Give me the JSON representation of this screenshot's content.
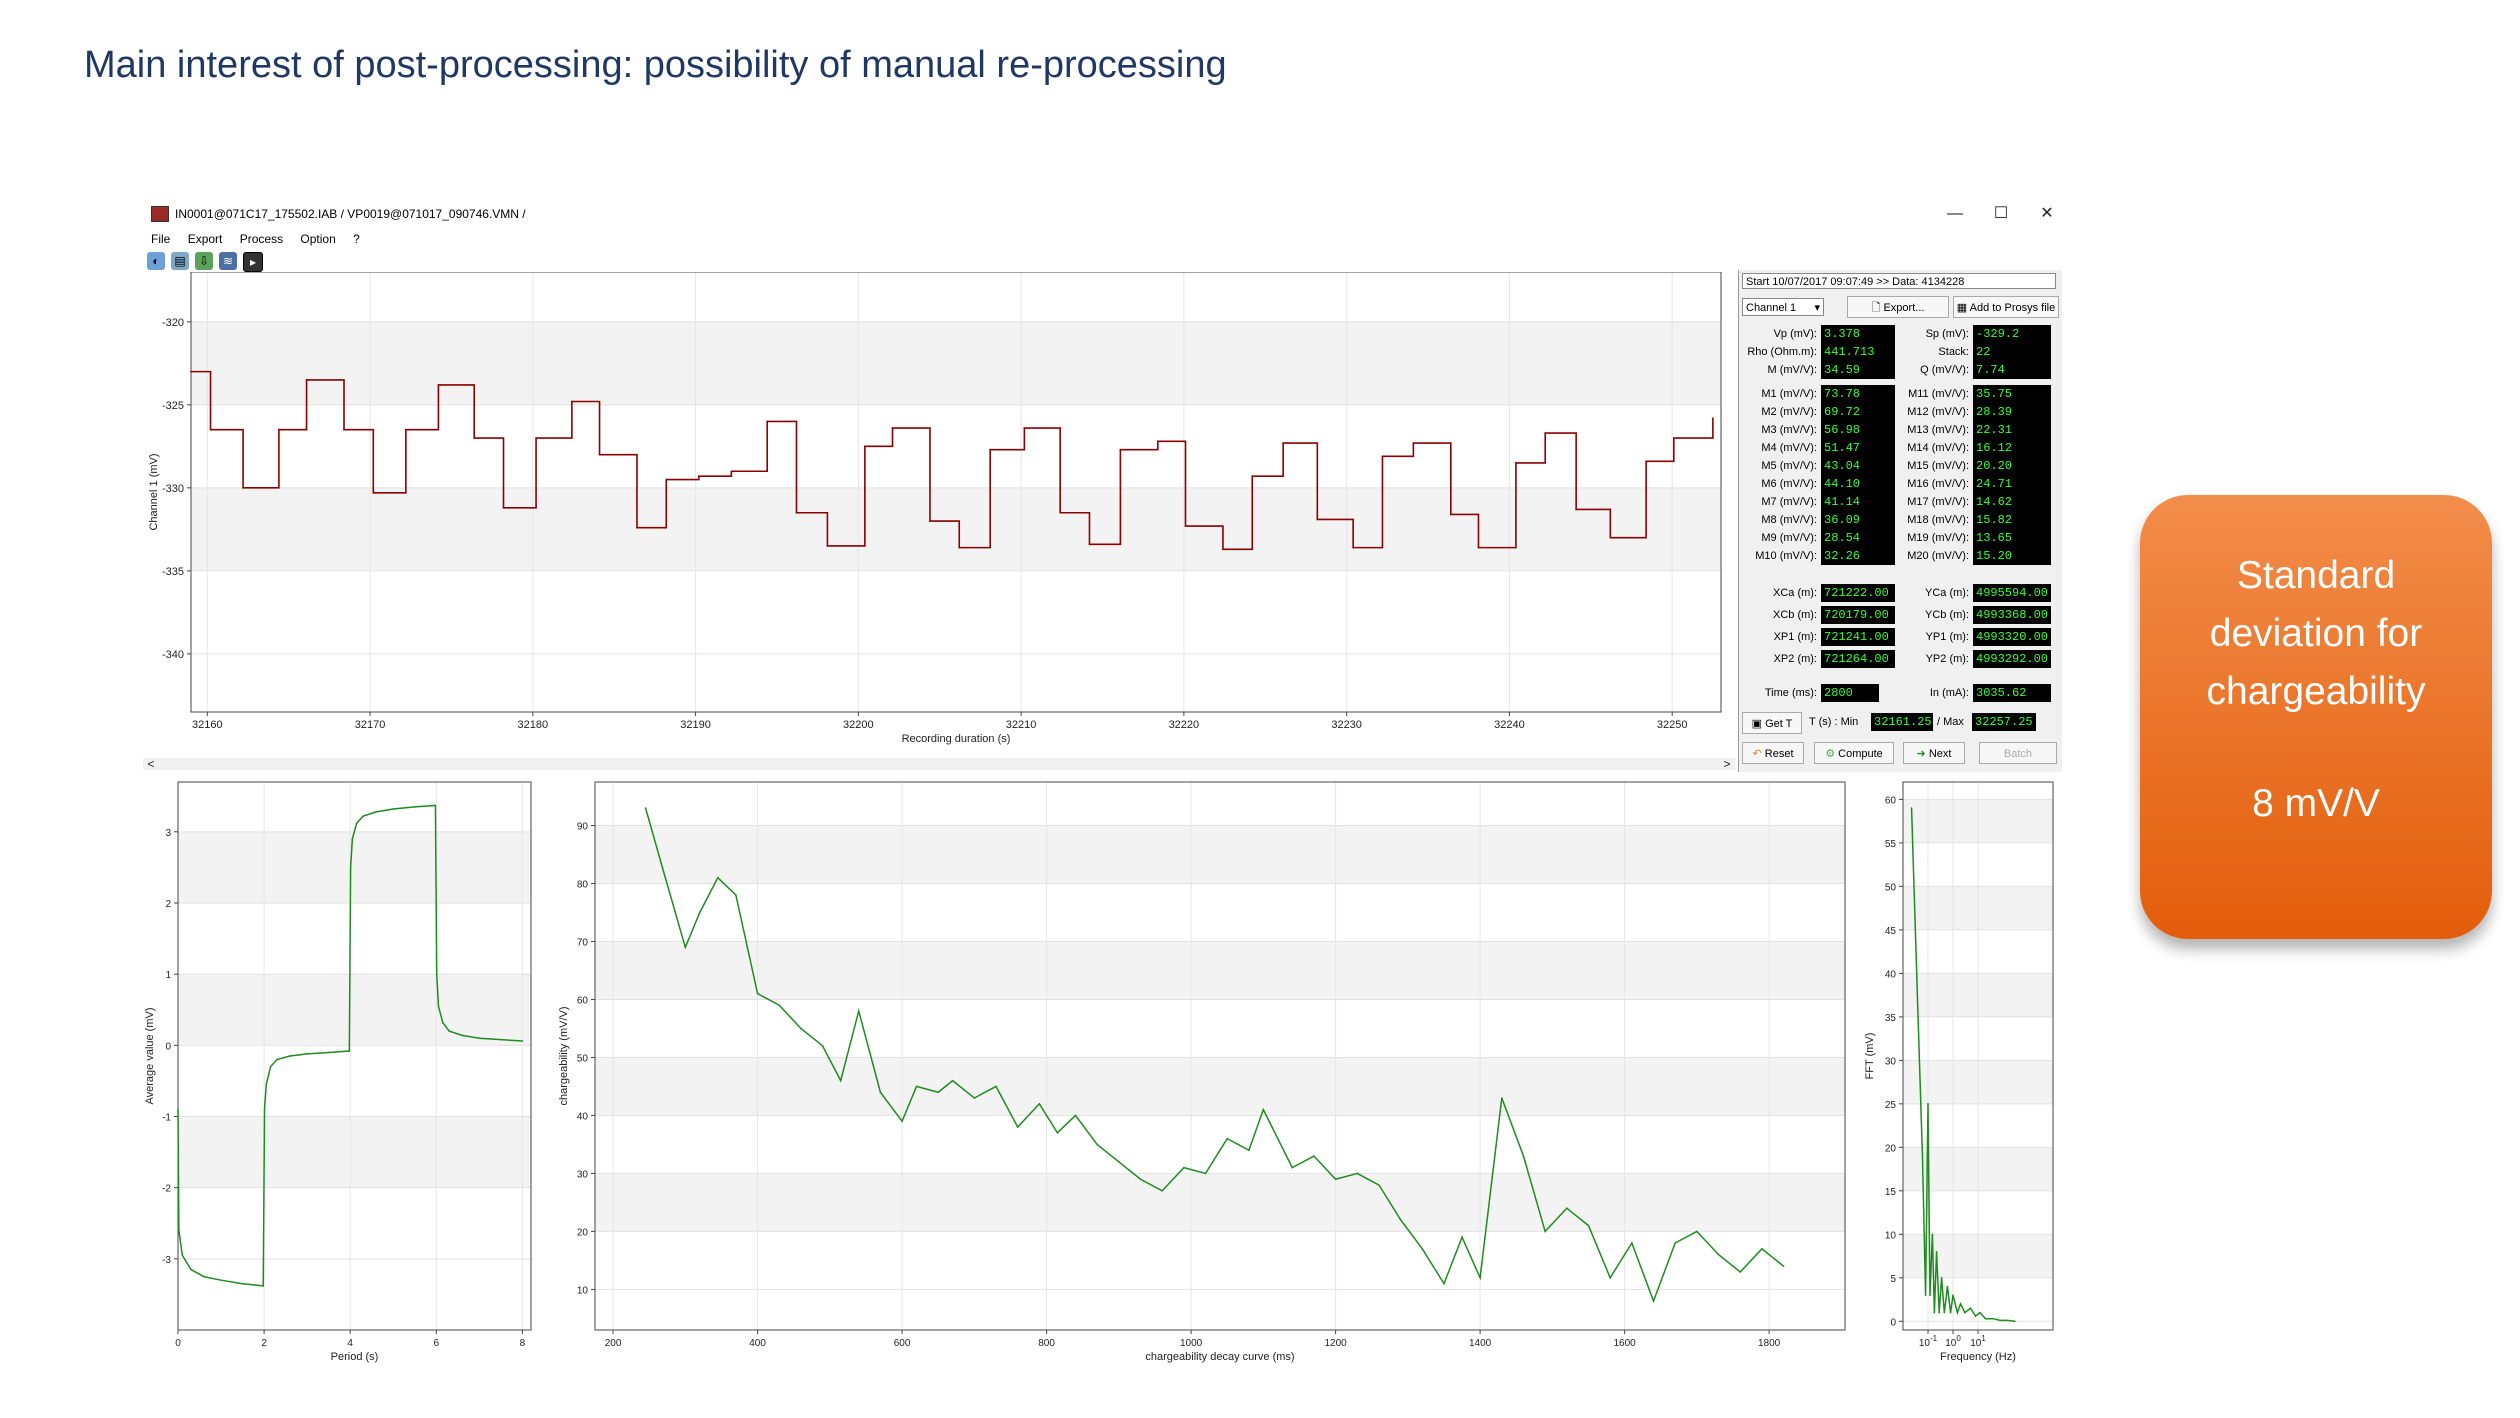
{
  "slide": {
    "title": "Main interest of post-processing: possibility of manual re-processing"
  },
  "window": {
    "title": "IN0001@071C17_175502.IAB / VP0019@071017_090746.VMN /",
    "controls": {
      "minimize": "—",
      "maximize": "☐",
      "close": "✕"
    },
    "menu": [
      "File",
      "Export",
      "Process",
      "Option",
      "?"
    ]
  },
  "top_chart": {
    "ylabel": "Channel 1  (mV)",
    "xlabel": "Recording duration  (s)",
    "yticks": [
      "-320",
      "-325",
      "-330",
      "-335",
      "-340"
    ],
    "xticks": [
      "32160",
      "32170",
      "32180",
      "32190",
      "32200",
      "32210",
      "32220",
      "32230",
      "32240",
      "32250"
    ]
  },
  "side_panel": {
    "start": "Start 10/07/2017 09:07:49  >> Data: 4134228",
    "channel": "Channel 1",
    "export_btn": "Export...",
    "prosys_btn": "Add to Prosys file",
    "params_left": [
      [
        "Vp (mV):",
        "3.378"
      ],
      [
        "Rho (Ohm.m):",
        "441.713"
      ],
      [
        "M (mV/V):",
        "34.59"
      ]
    ],
    "params_right": [
      [
        "Sp (mV):",
        "-329.2"
      ],
      [
        "Stack:",
        "22"
      ],
      [
        "Q (mV/V):",
        "7.74"
      ]
    ],
    "m_left": [
      [
        "M1 (mV/V):",
        "73.78"
      ],
      [
        "M2 (mV/V):",
        "69.72"
      ],
      [
        "M3 (mV/V):",
        "56.98"
      ],
      [
        "M4 (mV/V):",
        "51.47"
      ],
      [
        "M5 (mV/V):",
        "43.04"
      ],
      [
        "M6 (mV/V):",
        "44.10"
      ],
      [
        "M7 (mV/V):",
        "41.14"
      ],
      [
        "M8 (mV/V):",
        "36.09"
      ],
      [
        "M9 (mV/V):",
        "28.54"
      ],
      [
        "M10 (mV/V):",
        "32.26"
      ]
    ],
    "m_right": [
      [
        "M11 (mV/V):",
        "35.75"
      ],
      [
        "M12 (mV/V):",
        "28.39"
      ],
      [
        "M13 (mV/V):",
        "22.31"
      ],
      [
        "M14 (mV/V):",
        "16.12"
      ],
      [
        "M15 (mV/V):",
        "20.20"
      ],
      [
        "M16 (mV/V):",
        "24.71"
      ],
      [
        "M17 (mV/V):",
        "14.62"
      ],
      [
        "M18 (mV/V):",
        "15.82"
      ],
      [
        "M19 (mV/V):",
        "13.65"
      ],
      [
        "M20 (mV/V):",
        "15.20"
      ]
    ],
    "coords_left": [
      [
        "XCa (m):",
        "721222.00"
      ],
      [
        "XCb (m):",
        "720179.00"
      ],
      [
        "XP1 (m):",
        "721241.00"
      ],
      [
        "XP2 (m):",
        "721264.00"
      ]
    ],
    "coords_right": [
      [
        "YCa (m):",
        "4995594.00"
      ],
      [
        "YCb (m):",
        "4993368.00"
      ],
      [
        "YP1 (m):",
        "4993320.00"
      ],
      [
        "YP2 (m):",
        "4993292.00"
      ]
    ],
    "time_label": "Time (ms):",
    "time_value": "2800",
    "in_label": "In (mA):",
    "in_value": "3035.62",
    "get_t": "Get T",
    "t_min_label": "T (s) : Min",
    "t_min": "32161.25",
    "t_max_label": "/ Max",
    "t_max": "32257.25",
    "reset": "Reset",
    "compute": "Compute",
    "next": "Next",
    "batch": "Batch"
  },
  "chart_data": [
    {
      "type": "line",
      "ylabel": "Channel 1  (mV)",
      "xlabel": "Recording duration  (s)",
      "xlim": [
        32159,
        32253
      ],
      "ylim": [
        -343.5,
        -317
      ],
      "color": "#8b0000",
      "x": [
        32159.0,
        32160.2,
        32162.2,
        32164.4,
        32166.1,
        32168.4,
        32170.2,
        32172.2,
        32174.2,
        32176.4,
        32178.2,
        32180.2,
        32182.4,
        32184.1,
        32186.4,
        32188.2,
        32190.2,
        32192.2,
        32194.4,
        32196.2,
        32198.1,
        32200.4,
        32202.1,
        32204.4,
        32206.2,
        32208.1,
        32210.2,
        32212.4,
        32214.2,
        32216.1,
        32218.4,
        32220.1,
        32222.4,
        32224.2,
        32226.1,
        32228.2,
        32230.4,
        32232.2,
        32234.1,
        32236.4,
        32238.1,
        32240.4,
        32242.2,
        32244.1,
        32246.2,
        32248.4,
        32250.1,
        32252.5
      ],
      "y": [
        -323.0,
        -326.5,
        -330.0,
        -326.5,
        -323.5,
        -326.5,
        -330.3,
        -326.5,
        -323.8,
        -327.0,
        -331.2,
        -327.0,
        -324.8,
        -328.0,
        -332.4,
        -329.5,
        -329.3,
        -329.0,
        -326.0,
        -331.5,
        -333.5,
        -327.5,
        -326.4,
        -332.0,
        -333.6,
        -327.7,
        -326.4,
        -331.5,
        -333.4,
        -327.7,
        -327.2,
        -332.3,
        -333.7,
        -329.3,
        -327.3,
        -331.9,
        -333.6,
        -328.1,
        -327.3,
        -331.6,
        -333.6,
        -328.5,
        -326.7,
        -331.3,
        -333.0,
        -328.4,
        -327.0,
        -325.8
      ]
    },
    {
      "type": "line",
      "ylabel": "Average value  (mV)",
      "xlabel": "Period  (s)",
      "xlim": [
        0,
        8.2
      ],
      "ylim": [
        -4,
        3.7
      ],
      "xticks": [
        "0",
        "2",
        "4",
        "6",
        "8"
      ],
      "yticks": [
        "3",
        "2",
        "1",
        "0",
        "-1",
        "-2",
        "-3"
      ],
      "color": "#1e8c1e",
      "x": [
        0.0,
        0.02,
        0.1,
        0.3,
        0.6,
        1.0,
        1.5,
        1.98,
        2.01,
        2.05,
        2.15,
        2.3,
        2.6,
        3.0,
        3.5,
        3.98,
        4.01,
        4.05,
        4.15,
        4.3,
        4.6,
        5.0,
        5.5,
        5.98,
        6.01,
        6.05,
        6.15,
        6.3,
        6.6,
        7.0,
        7.5,
        8.0
      ],
      "y": [
        -0.9,
        -2.6,
        -2.95,
        -3.15,
        -3.25,
        -3.3,
        -3.35,
        -3.38,
        -0.9,
        -0.55,
        -0.3,
        -0.2,
        -0.15,
        -0.12,
        -0.1,
        -0.08,
        2.5,
        2.9,
        3.12,
        3.22,
        3.28,
        3.32,
        3.35,
        3.37,
        1.0,
        0.55,
        0.32,
        0.2,
        0.14,
        0.1,
        0.08,
        0.06
      ]
    },
    {
      "type": "line",
      "ylabel": "chargeability  (mV/V)",
      "xlabel": "chargeability decay curve (ms)",
      "xlim": [
        175,
        1905
      ],
      "ylim": [
        3,
        97.5
      ],
      "xticks": [
        "200",
        "400",
        "600",
        "800",
        "1000",
        "1200",
        "1400",
        "1600",
        "1800"
      ],
      "yticks": [
        "90",
        "80",
        "70",
        "60",
        "50",
        "40",
        "30",
        "20",
        "10"
      ],
      "color": "#1e8c1e",
      "x": [
        245,
        270,
        300,
        320,
        345,
        370,
        400,
        430,
        460,
        490,
        515,
        540,
        570,
        600,
        620,
        650,
        670,
        700,
        730,
        760,
        790,
        815,
        840,
        870,
        900,
        930,
        960,
        990,
        1020,
        1050,
        1080,
        1100,
        1140,
        1170,
        1200,
        1230,
        1260,
        1290,
        1320,
        1350,
        1375,
        1400,
        1430,
        1460,
        1490,
        1520,
        1550,
        1580,
        1610,
        1640,
        1670,
        1700,
        1730,
        1760,
        1790,
        1820
      ],
      "y": [
        93,
        82,
        69,
        75,
        81,
        78,
        61,
        59,
        55,
        52,
        46,
        58,
        44,
        39,
        45,
        44,
        46,
        43,
        45,
        38,
        42,
        37,
        40,
        35,
        32,
        29,
        27,
        31,
        30,
        36,
        34,
        41,
        31,
        33,
        29,
        30,
        28,
        22,
        17,
        11,
        19,
        12,
        43,
        33,
        20,
        24,
        21,
        12,
        18,
        8,
        18,
        20,
        16,
        13,
        17,
        14
      ]
    },
    {
      "type": "line",
      "ylabel": "FFT  (mV)",
      "xlabel": "Frequency (Hz)",
      "xscale": "log",
      "xlim": [
        0.01,
        10000
      ],
      "ylim": [
        -1,
        62
      ],
      "xticks": [
        "10^-1",
        "10^0",
        "10^1"
      ],
      "yticks": [
        "60",
        "55",
        "50",
        "45",
        "40",
        "35",
        "30",
        "25",
        "20",
        "15",
        "10",
        "5",
        "0"
      ],
      "color": "#1e8c1e",
      "x": [
        0.022,
        0.04,
        0.06,
        0.08,
        0.1,
        0.12,
        0.15,
        0.18,
        0.22,
        0.28,
        0.35,
        0.45,
        0.6,
        0.8,
        1.0,
        1.5,
        2,
        3,
        5,
        8,
        12,
        20,
        40,
        80,
        150,
        300
      ],
      "y": [
        59,
        35,
        19,
        3,
        25,
        3,
        10,
        1,
        8,
        1,
        5,
        1,
        4,
        1,
        3,
        1,
        2,
        1,
        1.5,
        0.6,
        1,
        0.3,
        0.3,
        0.1,
        0.1,
        0
      ]
    }
  ],
  "callout": {
    "line1": "Standard",
    "line2": "deviation for",
    "line3": "chargeability",
    "value": "8 mV/V",
    "color": "#ea6f22"
  }
}
